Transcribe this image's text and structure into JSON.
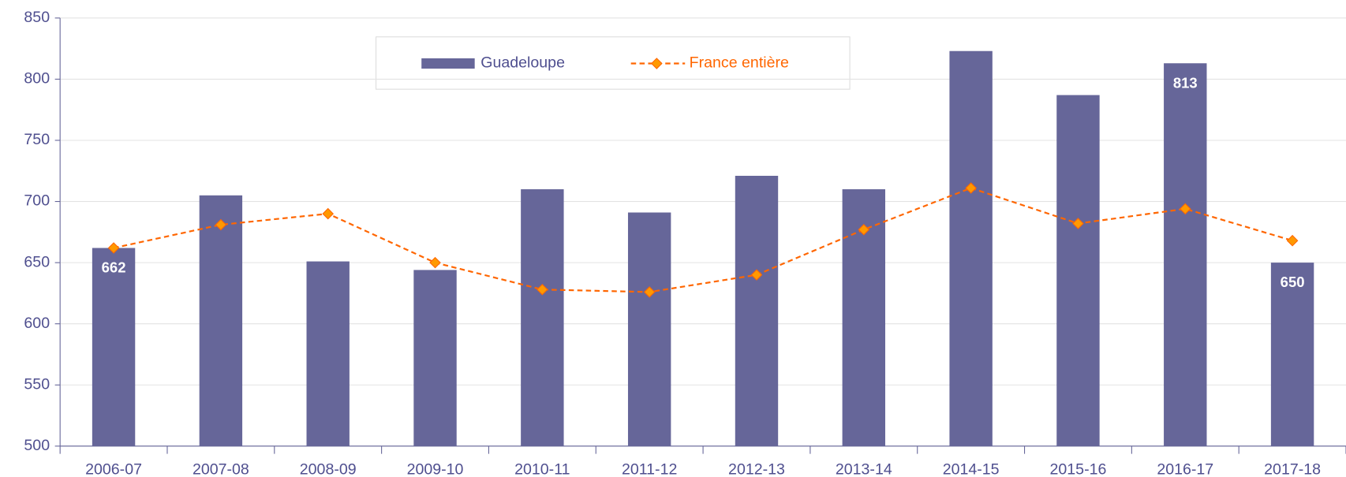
{
  "chart_data": {
    "type": "bar+line",
    "categories": [
      "2006-07",
      "2007-08",
      "2008-09",
      "2009-10",
      "2010-11",
      "2011-12",
      "2012-13",
      "2013-14",
      "2014-15",
      "2015-16",
      "2016-17",
      "2017-18"
    ],
    "series": [
      {
        "name": "Guadeloupe",
        "type": "bar",
        "color": "#666699",
        "values": [
          662,
          705,
          651,
          644,
          710,
          691,
          721,
          710,
          823,
          787,
          813,
          650
        ],
        "value_labels": [
          "662",
          null,
          null,
          null,
          null,
          null,
          null,
          null,
          null,
          null,
          "813",
          "650"
        ]
      },
      {
        "name": "France entière",
        "type": "line",
        "color": "#ff6600",
        "values": [
          662,
          681,
          690,
          650,
          628,
          626,
          640,
          677,
          711,
          682,
          694,
          668
        ]
      }
    ],
    "ylim": [
      500,
      850
    ],
    "yticks": [
      500,
      550,
      600,
      650,
      700,
      750,
      800,
      850
    ],
    "grid": true,
    "legend": "top"
  }
}
